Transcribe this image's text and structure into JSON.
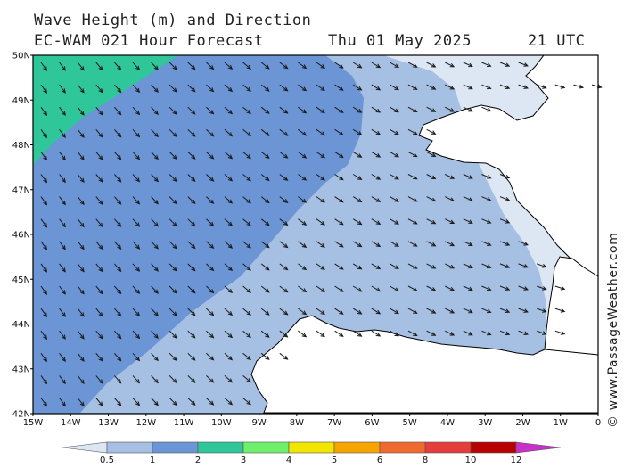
{
  "header": {
    "line1": "Wave Height (m) and Direction",
    "line2": "EC-WAM 021 Hour Forecast",
    "date": "Thu 01 May 2025",
    "time": "21 UTC"
  },
  "credit": "© www.PassageWeather.com",
  "axes": {
    "lat_labels": [
      "50N",
      "49N",
      "48N",
      "47N",
      "46N",
      "45N",
      "44N",
      "43N",
      "42N"
    ],
    "lon_labels": [
      "15W",
      "14W",
      "13W",
      "12W",
      "11W",
      "10W",
      "9W",
      "8W",
      "7W",
      "6W",
      "5W",
      "4W",
      "3W",
      "2W",
      "1W",
      "0"
    ]
  },
  "legend": {
    "values": [
      "0.5",
      "1",
      "2",
      "3",
      "4",
      "5",
      "6",
      "8",
      "10",
      "12"
    ],
    "colors": [
      "#dde7f4",
      "#a6c0e3",
      "#6b95d4",
      "#2fc79a",
      "#6ef06a",
      "#f2e600",
      "#f5a400",
      "#f06a30",
      "#e53c3c",
      "#b80000",
      "#c830c8"
    ]
  },
  "wave_colors": {
    "band_0_5_1": "#dde7f4",
    "band_1_2": "#a6c0e3",
    "band_2_3": "#6b95d4",
    "band_3_4": "#2fc79a",
    "land": "#ffffff",
    "coast": "#000000",
    "arrow": "#1a1a1a"
  }
}
